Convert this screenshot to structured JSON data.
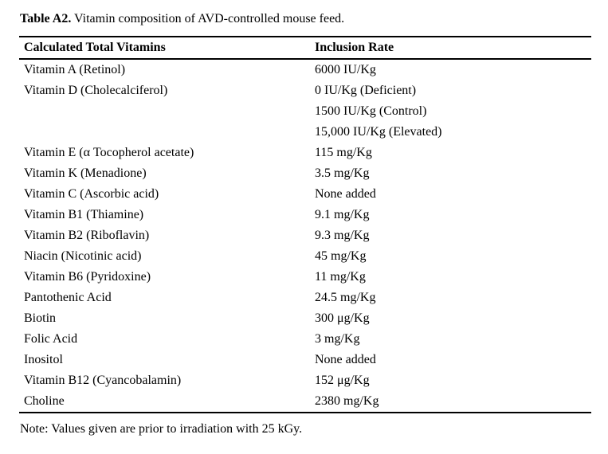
{
  "caption": {
    "label": "Table A2.",
    "text": " Vitamin composition of AVD-controlled mouse feed."
  },
  "table": {
    "headers": [
      "Calculated Total Vitamins",
      "Inclusion Rate"
    ],
    "rows": [
      {
        "vitamin": "Vitamin A (Retinol)",
        "rate": "6000 IU/Kg"
      },
      {
        "vitamin": "Vitamin D (Cholecalciferol)",
        "rate": "0 IU/Kg (Deficient)"
      },
      {
        "vitamin": "",
        "rate": "1500 IU/Kg (Control)"
      },
      {
        "vitamin": "",
        "rate": "15,000 IU/Kg (Elevated)"
      },
      {
        "vitamin": "Vitamin E (α Tocopherol acetate)",
        "rate": "115 mg/Kg"
      },
      {
        "vitamin": "Vitamin K (Menadione)",
        "rate": "3.5 mg/Kg"
      },
      {
        "vitamin": "Vitamin C (Ascorbic acid)",
        "rate": "None added"
      },
      {
        "vitamin": "Vitamin B1 (Thiamine)",
        "rate": "9.1 mg/Kg"
      },
      {
        "vitamin": "Vitamin B2 (Riboflavin)",
        "rate": "9.3 mg/Kg"
      },
      {
        "vitamin": "Niacin (Nicotinic acid)",
        "rate": "45 mg/Kg"
      },
      {
        "vitamin": "Vitamin B6 (Pyridoxine)",
        "rate": "11 mg/Kg"
      },
      {
        "vitamin": "Pantothenic Acid",
        "rate": "24.5 mg/Kg"
      },
      {
        "vitamin": "Biotin",
        "rate": "300 μg/Kg"
      },
      {
        "vitamin": "Folic Acid",
        "rate": "3 mg/Kg"
      },
      {
        "vitamin": "Inositol",
        "rate": "None added"
      },
      {
        "vitamin": "Vitamin B12 (Cyancobalamin)",
        "rate": "152 μg/Kg"
      },
      {
        "vitamin": "Choline",
        "rate": "2380 mg/Kg"
      }
    ]
  },
  "note": "Note: Values given are prior to irradiation with 25 kGy.",
  "colors": {
    "text": "#000000",
    "background": "#ffffff",
    "rule": "#000000"
  }
}
